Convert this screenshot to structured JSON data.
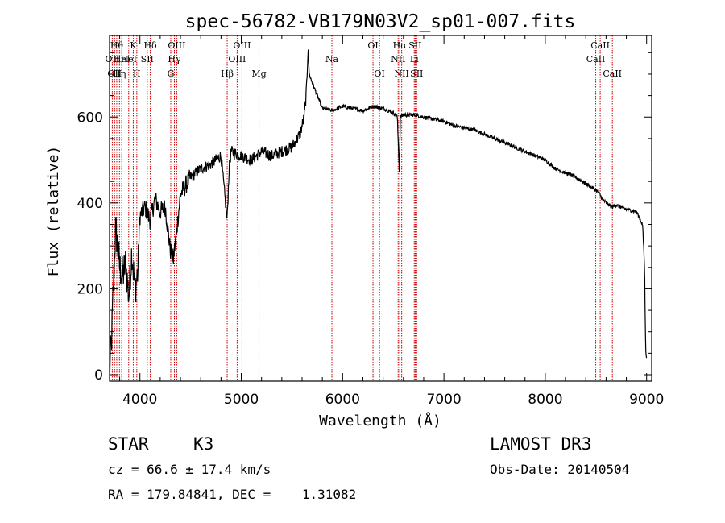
{
  "chart_data": {
    "type": "line",
    "title": "spec-56782-VB179N03V2_sp01-007.fits",
    "xlabel": "Wavelength (Å)",
    "ylabel": "Flux (relative)",
    "xlim": [
      3700,
      9050
    ],
    "ylim": [
      -15,
      790
    ],
    "x_ticks": [
      4000,
      5000,
      6000,
      7000,
      8000,
      9000
    ],
    "y_ticks": [
      0,
      200,
      400,
      600
    ],
    "x_tick_labels": [
      "4000",
      "5000",
      "6000",
      "7000",
      "8000",
      "9000"
    ],
    "y_tick_labels": [
      "0",
      "200",
      "400",
      "600"
    ],
    "spectrum": {
      "x": [
        3700,
        3720,
        3740,
        3760,
        3780,
        3800,
        3830,
        3860,
        3890,
        3920,
        3950,
        3980,
        4000,
        4050,
        4100,
        4150,
        4200,
        4250,
        4300,
        4330,
        4360,
        4400,
        4450,
        4500,
        4600,
        4700,
        4800,
        4860,
        4880,
        4900,
        5000,
        5100,
        5200,
        5300,
        5400,
        5500,
        5580,
        5620,
        5640,
        5650,
        5660,
        5670,
        5700,
        5750,
        5800,
        5900,
        6000,
        6100,
        6200,
        6300,
        6400,
        6500,
        6540,
        6560,
        6563,
        6570,
        6600,
        6700,
        6800,
        6900,
        7000,
        7100,
        7200,
        7300,
        7400,
        7500,
        7600,
        7700,
        7800,
        7900,
        8000,
        8100,
        8200,
        8300,
        8400,
        8500,
        8540,
        8560,
        8600,
        8660,
        8700,
        8800,
        8900,
        8960,
        8980,
        8990,
        9000
      ],
      "y": [
        10,
        80,
        220,
        340,
        300,
        250,
        230,
        260,
        180,
        290,
        200,
        240,
        370,
        390,
        360,
        410,
        380,
        390,
        290,
        270,
        330,
        420,
        440,
        460,
        480,
        490,
        510,
        360,
        480,
        520,
        510,
        500,
        520,
        510,
        520,
        530,
        560,
        600,
        650,
        700,
        760,
        700,
        680,
        650,
        620,
        615,
        625,
        620,
        615,
        625,
        620,
        610,
        600,
        470,
        520,
        600,
        605,
        605,
        600,
        595,
        590,
        580,
        575,
        570,
        560,
        550,
        540,
        530,
        520,
        510,
        500,
        480,
        470,
        460,
        445,
        430,
        420,
        410,
        400,
        390,
        395,
        385,
        380,
        350,
        250,
        60,
        40
      ]
    },
    "line_markers": [
      {
        "wave": 3727,
        "label": "OII",
        "row": 2
      },
      {
        "wave": 3750,
        "label": "OII",
        "row": 3
      },
      {
        "wave": 3771,
        "label": "Hθ",
        "row": 1
      },
      {
        "wave": 3798,
        "label": "Hη",
        "row": 3
      },
      {
        "wave": 3820,
        "label": "HeI",
        "row": 2
      },
      {
        "wave": 3889,
        "label": "HeI",
        "row": 2
      },
      {
        "wave": 3934,
        "label": "K",
        "row": 1
      },
      {
        "wave": 3969,
        "label": "H",
        "row": 3
      },
      {
        "wave": 4072,
        "label": "SII",
        "row": 2
      },
      {
        "wave": 4102,
        "label": "Hδ",
        "row": 1
      },
      {
        "wave": 4304,
        "label": "G",
        "row": 3
      },
      {
        "wave": 4340,
        "label": "Hγ",
        "row": 2
      },
      {
        "wave": 4363,
        "label": "OIII",
        "row": 1
      },
      {
        "wave": 4861,
        "label": "Hβ",
        "row": 3
      },
      {
        "wave": 4959,
        "label": "OIII",
        "row": 2
      },
      {
        "wave": 5007,
        "label": "OIII",
        "row": 1
      },
      {
        "wave": 5175,
        "label": "Mg",
        "row": 3
      },
      {
        "wave": 5894,
        "label": "Na",
        "row": 2
      },
      {
        "wave": 6300,
        "label": "OI",
        "row": 1
      },
      {
        "wave": 6364,
        "label": "OI",
        "row": 3
      },
      {
        "wave": 6548,
        "label": "NII",
        "row": 2
      },
      {
        "wave": 6563,
        "label": "Hα",
        "row": 1
      },
      {
        "wave": 6583,
        "label": "NII",
        "row": 3
      },
      {
        "wave": 6707,
        "label": "Li",
        "row": 2
      },
      {
        "wave": 6716,
        "label": "SII",
        "row": 1
      },
      {
        "wave": 6731,
        "label": "SII",
        "row": 3
      },
      {
        "wave": 8498,
        "label": "CaII",
        "row": 2
      },
      {
        "wave": 8542,
        "label": "CaII",
        "row": 1
      },
      {
        "wave": 8662,
        "label": "CaII",
        "row": 3
      }
    ]
  },
  "info": {
    "object_class": "STAR",
    "subclass": "K3",
    "survey": "LAMOST DR3",
    "redshift": "cz = 66.6 ± 17.4 km/s",
    "obs_date": "Obs-Date: 20140504",
    "coords": "RA = 179.84841, DEC =    1.31082"
  },
  "colors": {
    "spectrum": "#000000",
    "marker_line": "#cc0000",
    "axis": "#000000"
  }
}
